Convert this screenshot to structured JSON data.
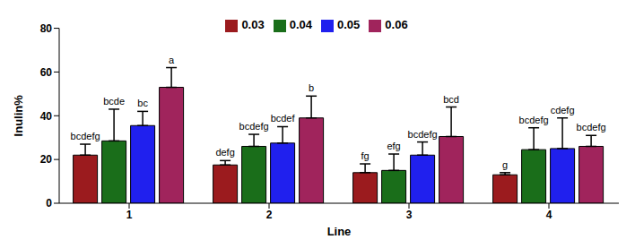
{
  "chart_data": {
    "type": "bar",
    "x_label": "Line",
    "y_label": "Inulin%",
    "categories": [
      "1",
      "2",
      "3",
      "4"
    ],
    "ylim": [
      0,
      80
    ],
    "yticks": [
      0,
      20,
      40,
      60,
      80
    ],
    "grid": false,
    "legend": "top",
    "series": [
      {
        "name": "0.03",
        "color": "#9b1b1e",
        "values": [
          22,
          17.5,
          14,
          13
        ],
        "errors": [
          5,
          2,
          4,
          1
        ],
        "letters": [
          "bcdefg",
          "defg",
          "fg",
          "g"
        ]
      },
      {
        "name": "0.04",
        "color": "#1a6e1a",
        "values": [
          28.5,
          26,
          15,
          24.5
        ],
        "errors": [
          14.5,
          5.5,
          7.5,
          10
        ],
        "letters": [
          "bcde",
          "bcdefg",
          "efg",
          "bcdefg"
        ]
      },
      {
        "name": "0.05",
        "color": "#2020ee",
        "values": [
          35.5,
          27.5,
          22,
          25
        ],
        "errors": [
          6.5,
          7.5,
          6,
          14
        ],
        "letters": [
          "bc",
          "bcdef",
          "bcdefg",
          "cdefg"
        ]
      },
      {
        "name": "0.06",
        "color": "#a0245c",
        "values": [
          53,
          39,
          30.5,
          26
        ],
        "errors": [
          9,
          10,
          13.5,
          5
        ],
        "letters": [
          "a",
          "b",
          "bcd",
          "bcdefg"
        ]
      }
    ]
  }
}
